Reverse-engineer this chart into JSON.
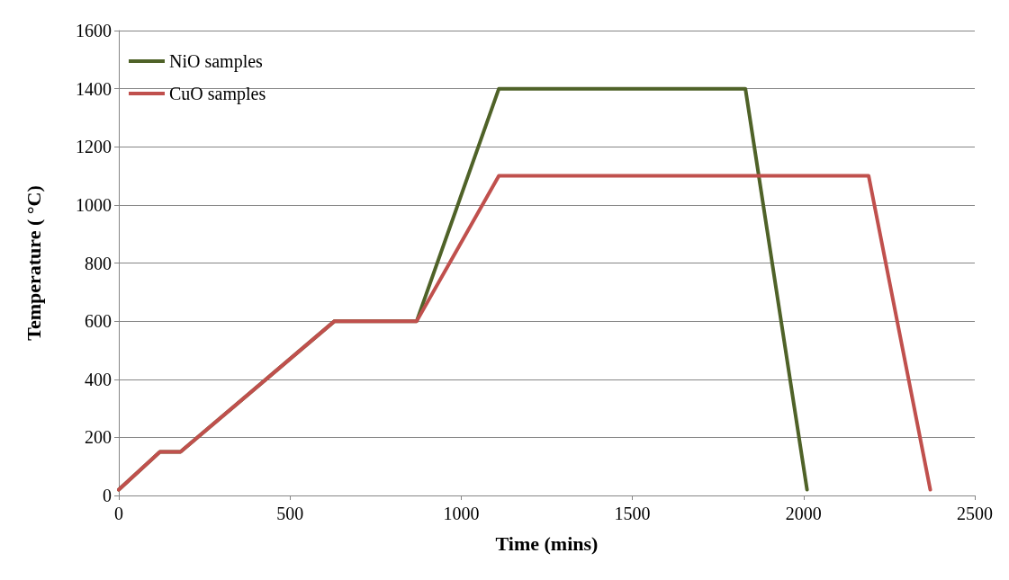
{
  "chart_data": {
    "type": "line",
    "xlabel": "Time (mins)",
    "ylabel": "Temperature ( °C)",
    "xlim": [
      0,
      2500
    ],
    "xticks": [
      0,
      500,
      1000,
      1500,
      2000,
      2500
    ],
    "ylim": [
      0,
      1600
    ],
    "yticks": [
      0,
      200,
      400,
      600,
      800,
      1000,
      1200,
      1400,
      1600
    ],
    "grid": "y",
    "legend": "top left",
    "marker": "none",
    "line_style": "solid",
    "series": [
      {
        "name": "NiO samples",
        "color": "#4f6228",
        "x": [
          0,
          120,
          180,
          630,
          870,
          1110,
          1830,
          2010
        ],
        "values": [
          20,
          150,
          150,
          600,
          600,
          1400,
          1400,
          20
        ]
      },
      {
        "name": "CuO samples",
        "color": "#c0504d",
        "x": [
          0,
          120,
          180,
          630,
          870,
          1110,
          2190,
          2370
        ],
        "values": [
          20,
          150,
          150,
          600,
          600,
          1100,
          1100,
          20
        ]
      }
    ]
  }
}
